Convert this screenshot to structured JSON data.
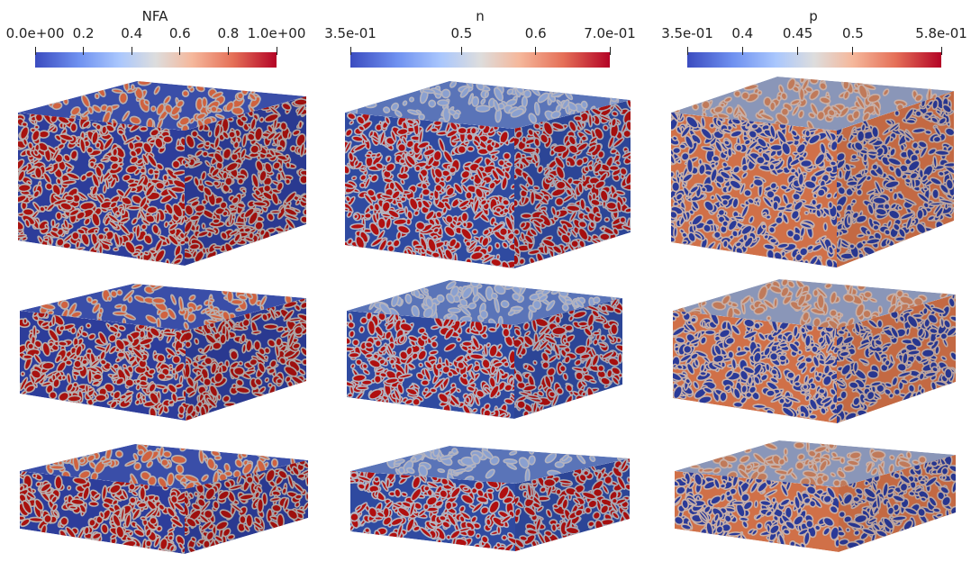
{
  "colormap": {
    "low": "#3b4cc0",
    "mid": "#dddddd",
    "high": "#b40426"
  },
  "panels": [
    {
      "title": "NFA",
      "ticks": [
        "0.0e+00",
        "0.2",
        "0.4",
        "0.6",
        "0.8",
        "1.0e+00"
      ],
      "tick_values": [
        0.0,
        0.2,
        0.4,
        0.6,
        0.8,
        1.0
      ],
      "range": [
        0.0,
        1.0
      ]
    },
    {
      "title": "n",
      "ticks": [
        "3.5e-01",
        "0.5",
        "0.6",
        "7.0e-01"
      ],
      "tick_values": [
        0.35,
        0.5,
        0.6,
        0.7
      ],
      "range": [
        0.35,
        0.7
      ]
    },
    {
      "title": "p",
      "ticks": [
        "3.5e-01",
        "0.4",
        "0.45",
        "0.5",
        "5.8e-01"
      ],
      "tick_values": [
        0.35,
        0.4,
        0.45,
        0.5,
        0.58
      ],
      "range": [
        0.35,
        0.58
      ]
    }
  ]
}
